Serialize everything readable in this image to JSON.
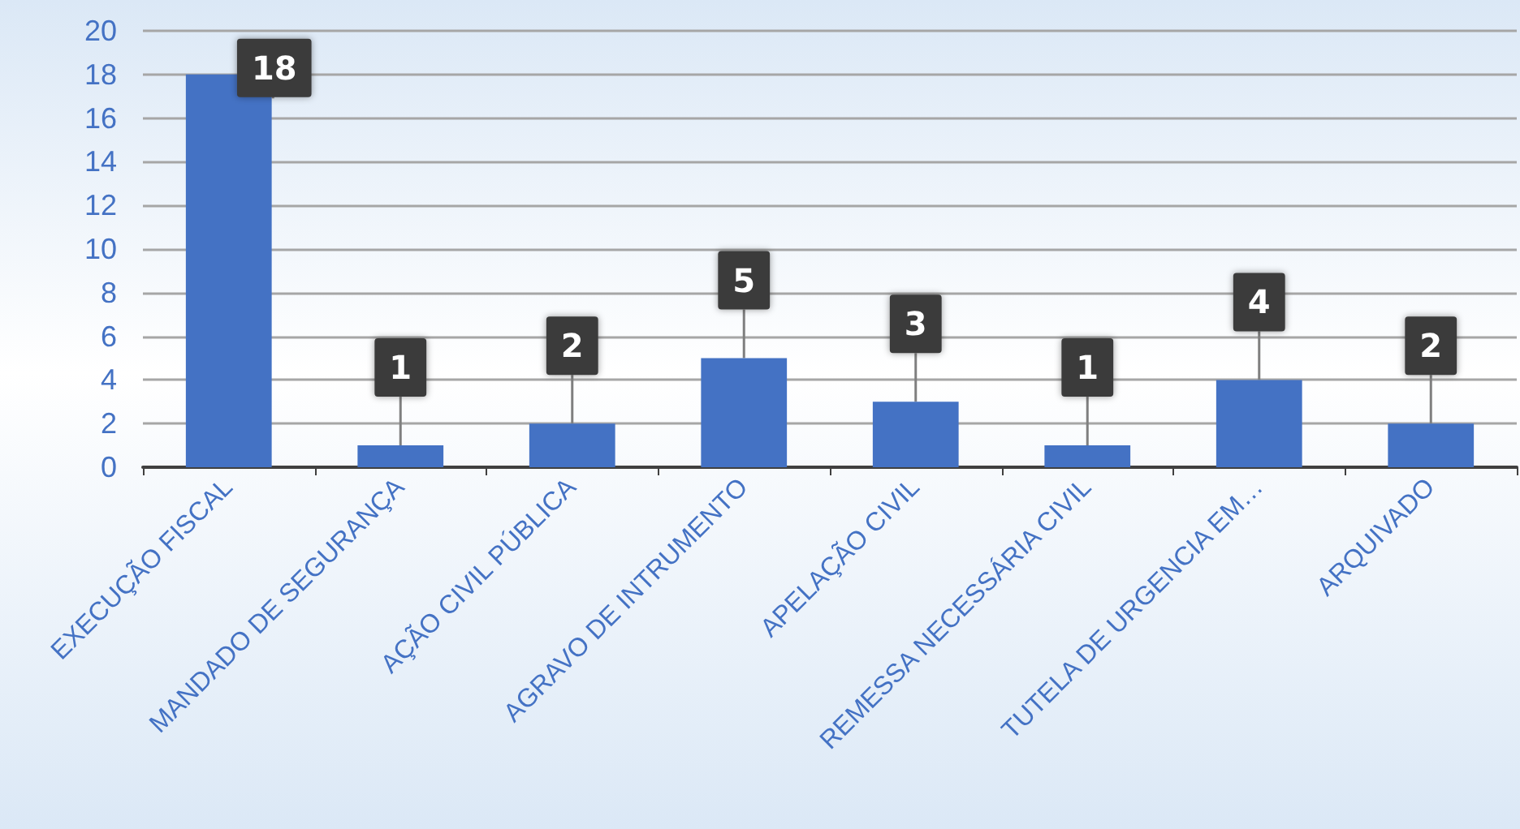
{
  "chart_data": {
    "type": "bar",
    "categories": [
      "EXECUÇÃO FISCAL",
      "MANDADO DE SEGURANÇA",
      "AÇÃO CIVIL PÚBLICA",
      "AGRAVO DE INTRUMENTO",
      "APELAÇÃO CIVIL",
      "REMESSA NECESSÁRIA CIVIL",
      "TUTELA DE URGENCIA EM…",
      "ARQUIVADO"
    ],
    "values": [
      18,
      1,
      2,
      5,
      3,
      1,
      4,
      2
    ],
    "color": "#4472c4",
    "ylim": [
      0,
      20
    ],
    "yticks": [
      0,
      2,
      4,
      6,
      8,
      10,
      12,
      14,
      16,
      18,
      20
    ],
    "grid": "y",
    "data_labels": true
  }
}
